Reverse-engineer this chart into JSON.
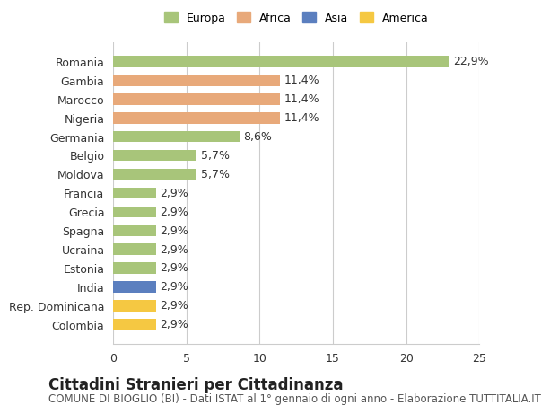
{
  "categories": [
    "Romania",
    "Gambia",
    "Marocco",
    "Nigeria",
    "Germania",
    "Belgio",
    "Moldova",
    "Francia",
    "Grecia",
    "Spagna",
    "Ucraina",
    "Estonia",
    "India",
    "Rep. Dominicana",
    "Colombia"
  ],
  "values": [
    22.9,
    11.4,
    11.4,
    11.4,
    8.6,
    5.7,
    5.7,
    2.9,
    2.9,
    2.9,
    2.9,
    2.9,
    2.9,
    2.9,
    2.9
  ],
  "labels": [
    "22,9%",
    "11,4%",
    "11,4%",
    "11,4%",
    "8,6%",
    "5,7%",
    "5,7%",
    "2,9%",
    "2,9%",
    "2,9%",
    "2,9%",
    "2,9%",
    "2,9%",
    "2,9%",
    "2,9%"
  ],
  "continent": [
    "Europa",
    "Africa",
    "Africa",
    "Africa",
    "Europa",
    "Europa",
    "Europa",
    "Europa",
    "Europa",
    "Europa",
    "Europa",
    "Europa",
    "Asia",
    "America",
    "America"
  ],
  "colors": {
    "Europa": "#a8c57a",
    "Africa": "#e8a97a",
    "Asia": "#5b7fbf",
    "America": "#f5c842"
  },
  "legend_colors": {
    "Europa": "#a8c57a",
    "Africa": "#e8a97a",
    "Asia": "#5b7fbf",
    "America": "#f5c842"
  },
  "xlim": [
    0,
    25
  ],
  "xticks": [
    0,
    5,
    10,
    15,
    20,
    25
  ],
  "title": "Cittadini Stranieri per Cittadinanza",
  "subtitle": "COMUNE DI BIOGLIO (BI) - Dati ISTAT al 1° gennaio di ogni anno - Elaborazione TUTTITALIA.IT",
  "background_color": "#ffffff",
  "bar_height": 0.6,
  "label_fontsize": 9,
  "title_fontsize": 12,
  "subtitle_fontsize": 8.5,
  "tick_fontsize": 9
}
